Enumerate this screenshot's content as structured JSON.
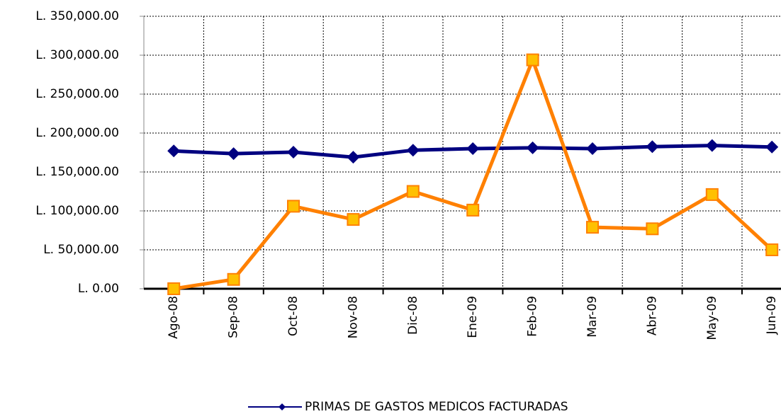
{
  "chart_data": {
    "type": "line",
    "categories": [
      "Ago-08",
      "Sep-08",
      "Oct-08",
      "Nov-08",
      "Dic-08",
      "Ene-09",
      "Feb-09",
      "Mar-09",
      "Abr-09",
      "May-09",
      "Jun-09"
    ],
    "series": [
      {
        "name": "PRIMAS DE GASTOS MEDICOS FACTURADAS",
        "color": "#000080",
        "marker": "diamond",
        "values": [
          177000,
          173500,
          175500,
          169000,
          178000,
          180000,
          181000,
          180000,
          182500,
          184000,
          182000
        ]
      },
      {
        "color": "#ff8000",
        "marker": "square",
        "values": [
          0,
          12000,
          106000,
          89000,
          125000,
          101000,
          294000,
          79000,
          77000,
          121000,
          50000
        ]
      }
    ],
    "ylim": [
      0,
      350000
    ],
    "yticks": [
      {
        "value": 0,
        "label": "L. 0.00"
      },
      {
        "value": 50000,
        "label": "L. 50,000.00"
      },
      {
        "value": 100000,
        "label": "L. 100,000.00"
      },
      {
        "value": 150000,
        "label": "L. 150,000.00"
      },
      {
        "value": 200000,
        "label": "L. 200,000.00"
      },
      {
        "value": 250000,
        "label": "L. 250,000.00"
      },
      {
        "value": 300000,
        "label": "L. 300,000.00"
      },
      {
        "value": 350000,
        "label": "L. 350,000.00"
      }
    ],
    "grid": true
  }
}
